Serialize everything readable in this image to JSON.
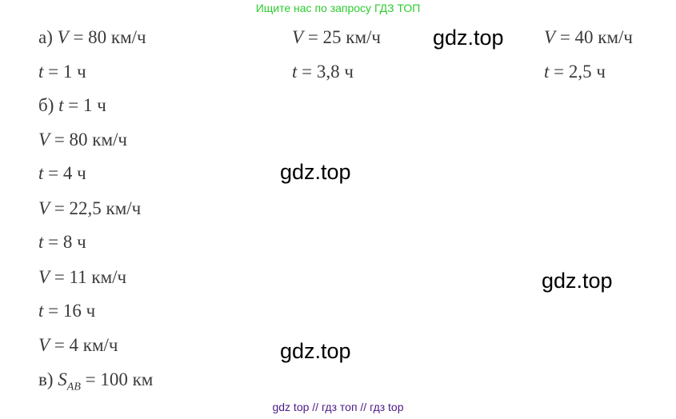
{
  "banner": "Ищите нас по запросу ГДЗ ТОП",
  "lines": [
    {
      "label": "а) ",
      "var": "V",
      "sub": "",
      "rest": " = 80  км/ч"
    },
    {
      "label": "",
      "var": "t",
      "sub": "",
      "rest": " = 1 ч"
    },
    {
      "label": "б) ",
      "var": "t",
      "sub": "",
      "rest": " = 1 ч"
    },
    {
      "label": "",
      "var": "V",
      "sub": "",
      "rest": " = 80  км/ч"
    },
    {
      "label": "",
      "var": "t",
      "sub": "",
      "rest": " = 4 ч"
    },
    {
      "label": "",
      "var": "V",
      "sub": "",
      "rest": " = 22,5  км/ч"
    },
    {
      "label": "",
      "var": "t",
      "sub": "",
      "rest": " = 8 ч"
    },
    {
      "label": "",
      "var": "V",
      "sub": "",
      "rest": " = 11  км/ч"
    },
    {
      "label": "",
      "var": "t",
      "sub": "",
      "rest": " = 16 ч"
    },
    {
      "label": "",
      "var": "V",
      "sub": "",
      "rest": " = 4  км/ч"
    },
    {
      "label": "в) ",
      "var": "S",
      "sub": "AB",
      "rest": " = 100 км"
    }
  ],
  "col2": [
    {
      "var": "V",
      "rest": " = 25  км/ч"
    },
    {
      "var": "t",
      "rest": " = 3,8 ч"
    }
  ],
  "col3": [
    {
      "var": "V",
      "rest": " = 40  км/ч"
    },
    {
      "var": "t",
      "rest": " = 2,5 ч"
    }
  ],
  "watermarks": [
    "gdz.top",
    "gdz.top",
    "gdz.top",
    "gdz.top"
  ],
  "footer": "gdz top  //  гдз топ  //  гдз top"
}
